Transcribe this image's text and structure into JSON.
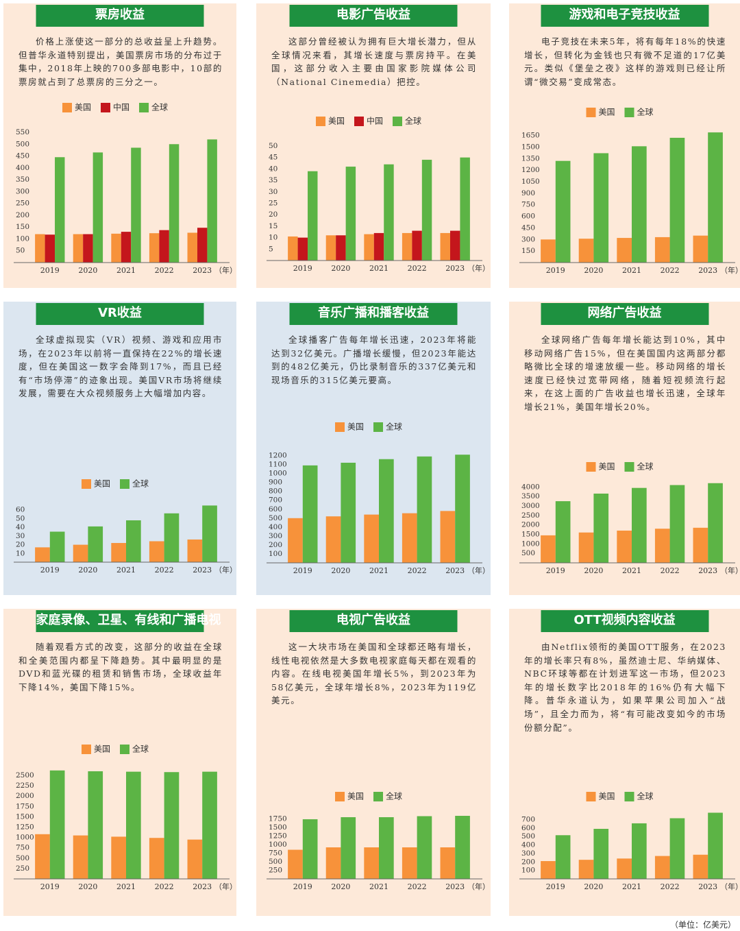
{
  "chart_data": [
    {
      "type": "bar",
      "title": "票房收益",
      "background": "#fde9d9",
      "description": "价格上涨使这一部分的总收益呈上升趋势。但普华永道特别提出，美国票房市场的分布过于集中，2018年上映的700多部电影中，10部的票房就占到了总票房的三分之一。",
      "categories": [
        "2019",
        "2020",
        "2021",
        "2022",
        "2023"
      ],
      "xlabel": "（年）",
      "series": [
        {
          "name": "美国",
          "color": "#f7923a",
          "values": [
            120,
            120,
            122,
            124,
            126
          ]
        },
        {
          "name": "中国",
          "color": "#c4161c",
          "values": [
            118,
            120,
            130,
            137,
            147
          ]
        },
        {
          "name": "全球",
          "color": "#5cb445",
          "values": [
            445,
            465,
            485,
            500,
            520
          ]
        }
      ],
      "ylim": [
        0,
        550
      ],
      "yticks": [
        50,
        100,
        150,
        200,
        250,
        300,
        350,
        400,
        450,
        500,
        550
      ]
    },
    {
      "type": "bar",
      "title": "电影广告收益",
      "background": "#fde9d9",
      "description": "这部分曾经被认为拥有巨大增长潜力，但从全球情况来看，其增长速度与票房持平。在美国，这部分收入主要由国家影院媒体公司（National Cinemedia）把控。",
      "categories": [
        "2019",
        "2020",
        "2021",
        "2022",
        "2023"
      ],
      "xlabel": "（年）",
      "series": [
        {
          "name": "美国",
          "color": "#f7923a",
          "values": [
            10.5,
            11,
            11.5,
            12,
            12
          ]
        },
        {
          "name": "中国",
          "color": "#c4161c",
          "values": [
            10,
            11,
            12,
            13,
            13
          ]
        },
        {
          "name": "全球",
          "color": "#5cb445",
          "values": [
            39,
            41,
            42,
            44,
            45
          ]
        }
      ],
      "ylim": [
        0,
        50
      ],
      "yticks": [
        5,
        10,
        15,
        20,
        25,
        30,
        35,
        40,
        45,
        50
      ]
    },
    {
      "type": "bar",
      "title": "游戏和电子竞技收益",
      "background": "#fde9d9",
      "description": "电子竞技在未来5年，将有每年18%的快速增长，但转化为金钱也只有微不足道的17亿美元。类似《堡垒之夜》这样的游戏则已经让所谓“微交易”变成常态。",
      "categories": [
        "2019",
        "2020",
        "2021",
        "2022",
        "2023"
      ],
      "xlabel": "（年）",
      "series": [
        {
          "name": "美国",
          "color": "#f7923a",
          "values": [
            300,
            310,
            320,
            330,
            350
          ]
        },
        {
          "name": "全球",
          "color": "#5cb445",
          "values": [
            1320,
            1420,
            1510,
            1620,
            1690
          ]
        }
      ],
      "ylim": [
        0,
        1700
      ],
      "yticks": [
        150,
        300,
        450,
        600,
        750,
        900,
        1050,
        1200,
        1350,
        1500,
        1650
      ]
    },
    {
      "type": "bar",
      "title": "VR收益",
      "background": "#dce6f0",
      "description": "全球虚拟现实（VR）视频、游戏和应用市场，在2023年以前将一直保持在22%的增长速度，但在美国这一数字会降到17%，而且已经有“市场停滞”的迹象出现。美国VR市场将继续发展，需要在大众视频服务上大幅增加内容。",
      "categories": [
        "2019",
        "2020",
        "2021",
        "2022",
        "2023"
      ],
      "xlabel": "（年）",
      "series": [
        {
          "name": "美国",
          "color": "#f7923a",
          "values": [
            17,
            20,
            22,
            24,
            26
          ]
        },
        {
          "name": "全球",
          "color": "#5cb445",
          "values": [
            35,
            41,
            48,
            56,
            65
          ]
        }
      ],
      "ylim": [
        0,
        70
      ],
      "yticks": [
        10,
        20,
        30,
        40,
        50,
        60
      ]
    },
    {
      "type": "bar",
      "title": "音乐广播和播客收益",
      "background": "#dce6f0",
      "description": "全球播客广告每年增长迅速，2023年将能达到32亿美元。广播增长缓慢，但2023年能达到的482亿美元，仍比录制音乐的337亿美元和现场音乐的315亿美元要高。",
      "categories": [
        "2019",
        "2020",
        "2021",
        "2022",
        "2023"
      ],
      "xlabel": "（年）",
      "series": [
        {
          "name": "美国",
          "color": "#f7923a",
          "values": [
            500,
            520,
            540,
            555,
            580
          ]
        },
        {
          "name": "全球",
          "color": "#5cb445",
          "values": [
            1090,
            1120,
            1160,
            1190,
            1210
          ]
        }
      ],
      "ylim": [
        0,
        1250
      ],
      "yticks": [
        100,
        200,
        300,
        400,
        500,
        600,
        700,
        800,
        900,
        1000,
        1100,
        1200
      ]
    },
    {
      "type": "bar",
      "title": "网络广告收益",
      "background": "#fde9d9",
      "description": "全球网络广告每年增长能达到10%，其中移动网络广告15%，但在美国国内这两部分都略微比全球的增速放缓一些。移动网络的增长速度已经快过宽带网络，随着短视频流行起来，在这上面的广告收益也增长迅速，全球年增长21%，美国年增长20%。",
      "categories": [
        "2019",
        "2020",
        "2021",
        "2022",
        "2023"
      ],
      "xlabel": "（年）",
      "series": [
        {
          "name": "美国",
          "color": "#f7923a",
          "values": [
            1450,
            1600,
            1700,
            1800,
            1850
          ]
        },
        {
          "name": "全球",
          "color": "#5cb445",
          "values": [
            3250,
            3650,
            3950,
            4100,
            4200
          ]
        }
      ],
      "ylim": [
        0,
        4300
      ],
      "yticks": [
        500,
        1000,
        1500,
        2000,
        2500,
        3000,
        3500,
        4000
      ]
    },
    {
      "type": "bar",
      "title": "家庭录像、卫星、有线和广播电视",
      "background": "#fde9d9",
      "description": "随着观看方式的改变，这部分的收益在全球和全美范围内都呈下降趋势。其中最明显的是DVD和蓝光碟的租赁和销售市场，全球收益年下降14%，美国下降15%。",
      "categories": [
        "2019",
        "2020",
        "2021",
        "2022",
        "2023"
      ],
      "xlabel": "（年）",
      "series": [
        {
          "name": "美国",
          "color": "#f7923a",
          "values": [
            1080,
            1050,
            1020,
            990,
            950
          ]
        },
        {
          "name": "全球",
          "color": "#5cb445",
          "values": [
            2620,
            2600,
            2590,
            2580,
            2590
          ]
        }
      ],
      "ylim": [
        0,
        2650
      ],
      "yticks": [
        250,
        500,
        750,
        1000,
        1250,
        1500,
        1750,
        2000,
        2250,
        2500
      ]
    },
    {
      "type": "bar",
      "title": "电视广告收益",
      "background": "#fde9d9",
      "description": "这一大块市场在美国和全球都还略有增长，线性电视依然是大多数电视家庭每天都在观看的内容。在线电视美国年增长5%，到2023年为58亿美元，全球年增长8%，2023年为119亿美元。",
      "categories": [
        "2019",
        "2020",
        "2021",
        "2022",
        "2023"
      ],
      "xlabel": "（年）",
      "series": [
        {
          "name": "美国",
          "color": "#f7923a",
          "values": [
            850,
            920,
            920,
            920,
            920
          ]
        },
        {
          "name": "全球",
          "color": "#5cb445",
          "values": [
            1740,
            1800,
            1800,
            1830,
            1840
          ]
        }
      ],
      "ylim": [
        0,
        1900
      ],
      "yticks": [
        250,
        500,
        750,
        1000,
        1250,
        1500,
        1750
      ]
    },
    {
      "type": "bar",
      "title": "OTT视频内容收益",
      "background": "#fde9d9",
      "description": "由Netflix领衔的美国OTT服务，在2023年的增长率只有8%，虽然迪士尼、华纳媒体、NBC环球等都在计划进军这一市场，但2023年的增长数字比2018年的16%仍有大幅下降。普华永道认为，如果苹果公司加入“战场”，且全力而为，将“有可能改变如今的市场份额分配”。",
      "categories": [
        "2019",
        "2020",
        "2021",
        "2022",
        "2023"
      ],
      "xlabel": "（年）",
      "series": [
        {
          "name": "美国",
          "color": "#f7923a",
          "values": [
            210,
            225,
            240,
            270,
            285
          ]
        },
        {
          "name": "全球",
          "color": "#5cb445",
          "values": [
            515,
            590,
            655,
            715,
            780
          ]
        }
      ],
      "ylim": [
        0,
        800
      ],
      "yticks": [
        100,
        200,
        300,
        400,
        500,
        600,
        700
      ]
    }
  ],
  "unit_note": "（单位：亿美元）"
}
